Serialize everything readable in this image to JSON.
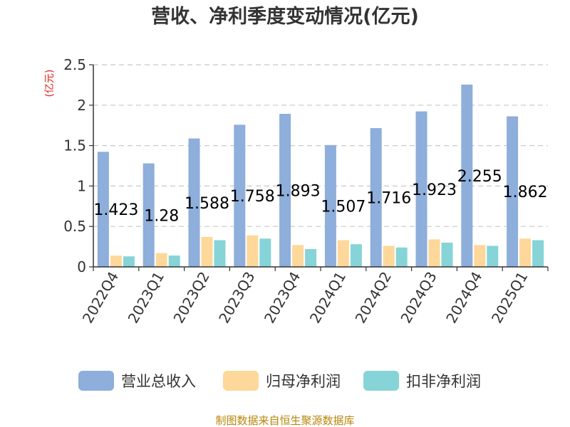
{
  "chart_data": {
    "type": "bar",
    "title": "营收、净利季度变动情况(亿元)",
    "ylabel": "(亿元)",
    "ylim": [
      0,
      2.5
    ],
    "yticks": [
      "0",
      "0.5",
      "1",
      "1.5",
      "2",
      "2.5"
    ],
    "categories": [
      "2022Q4",
      "2023Q1",
      "2023Q2",
      "2023Q3",
      "2023Q4",
      "2024Q1",
      "2024Q2",
      "2024Q3",
      "2024Q4",
      "2025Q1"
    ],
    "series": [
      {
        "name": "营业总收入",
        "color": "#8eaedb",
        "values": [
          1.423,
          1.28,
          1.588,
          1.758,
          1.893,
          1.507,
          1.716,
          1.923,
          2.255,
          1.862
        ]
      },
      {
        "name": "归母净利润",
        "color": "#fdd89a",
        "values": [
          0.14,
          0.17,
          0.37,
          0.39,
          0.27,
          0.33,
          0.26,
          0.34,
          0.27,
          0.35
        ]
      },
      {
        "name": "扣非净利润",
        "color": "#86d4d7",
        "values": [
          0.13,
          0.14,
          0.33,
          0.35,
          0.22,
          0.28,
          0.24,
          0.3,
          0.26,
          0.33
        ]
      }
    ],
    "data_labels": [
      "1.423",
      "1.28",
      "1.588",
      "1.758",
      "1.893",
      "1.507",
      "1.716",
      "1.923",
      "2.255",
      "1.862"
    ],
    "grid": true,
    "legend_position": "bottom"
  },
  "footer": "制图数据来自恒生聚源数据库"
}
